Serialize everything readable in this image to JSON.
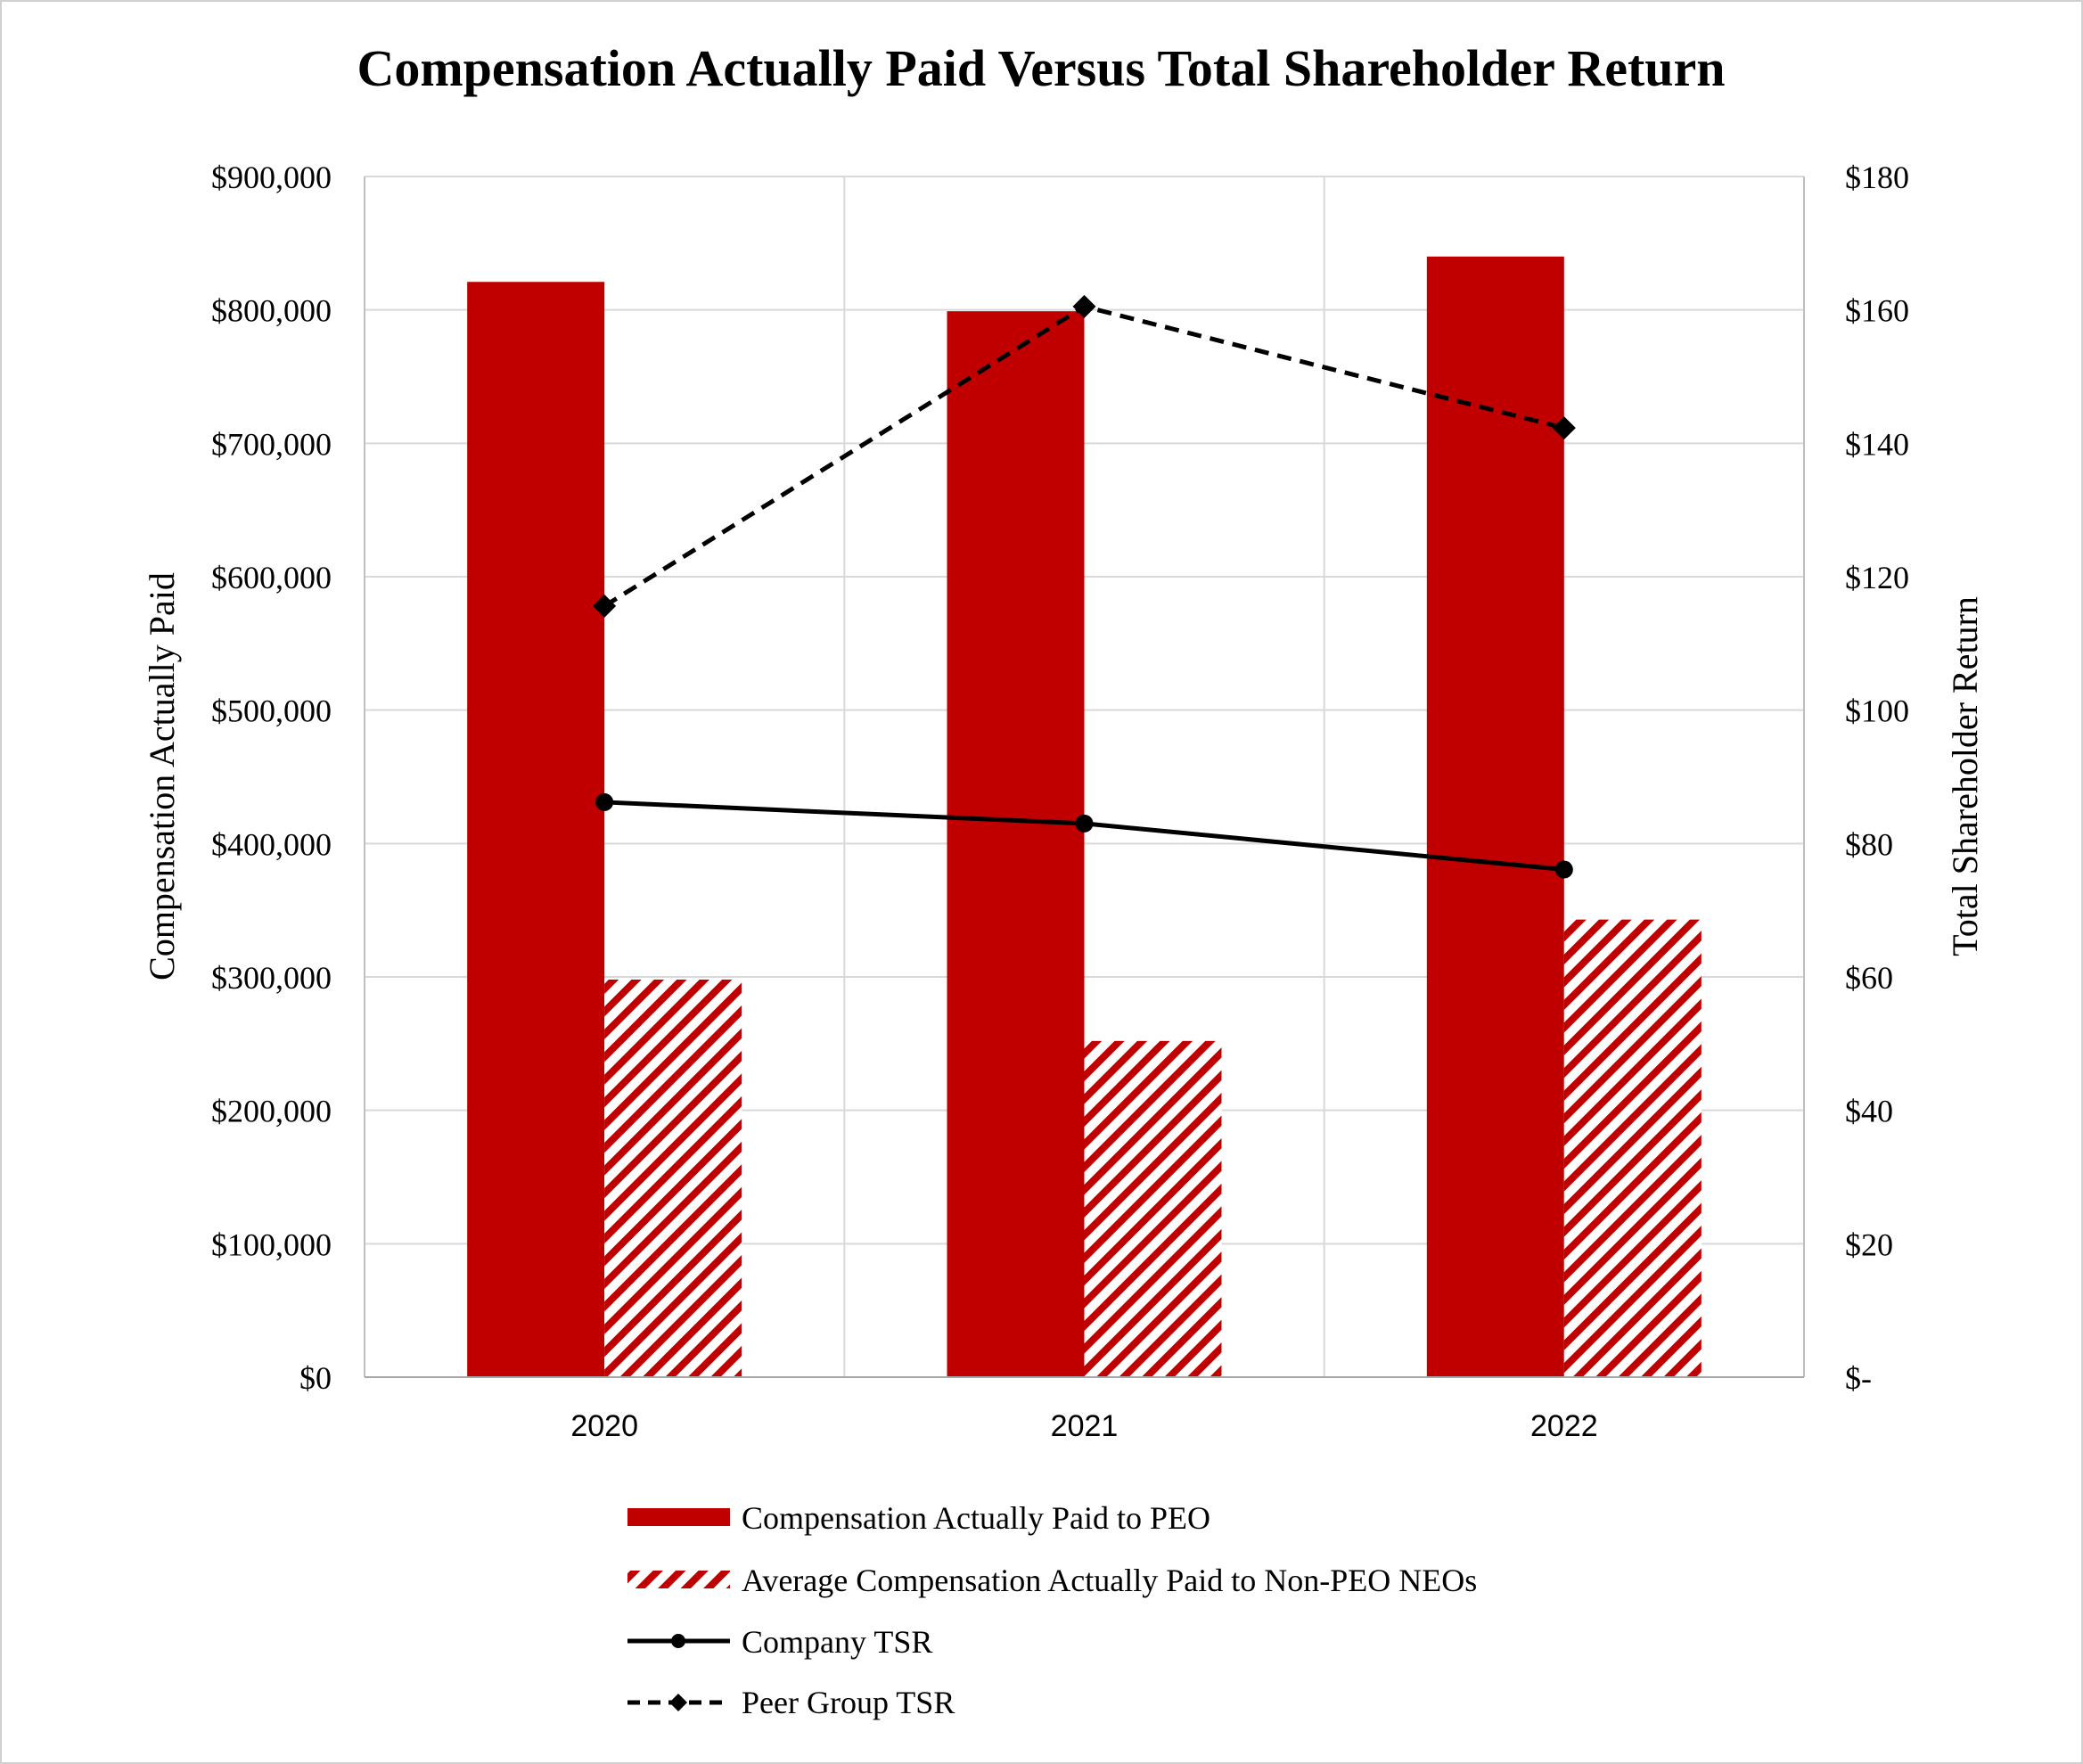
{
  "chart_data": {
    "type": "bar",
    "title": "Compensation Actually Paid Versus Total Shareholder Return",
    "categories": [
      "2020",
      "2021",
      "2022"
    ],
    "ylabel": "Compensation Actually Paid",
    "ylabel_right": "Total Shareholder Return",
    "ylim": [
      0,
      900000
    ],
    "ylim_right": [
      0,
      180
    ],
    "y_ticks": [
      "$0",
      "$100,000",
      "$200,000",
      "$300,000",
      "$400,000",
      "$500,000",
      "$600,000",
      "$700,000",
      "$800,000",
      "$900,000"
    ],
    "y_right_ticks": [
      "$-",
      "$20",
      "$40",
      "$60",
      "$80",
      "$100",
      "$120",
      "$140",
      "$160",
      "$180"
    ],
    "grid": true,
    "legend_position": "bottom",
    "series": [
      {
        "name": "Compensation Actually Paid to PEO",
        "kind": "bar",
        "axis": "left",
        "style": "solid",
        "color": "#c00000",
        "values": [
          821000,
          799000,
          840000
        ]
      },
      {
        "name": "Average Compensation Actually Paid to Non-PEO NEOs",
        "kind": "bar",
        "axis": "left",
        "style": "hatched",
        "color": "#c00000",
        "values": [
          298000,
          252000,
          343000
        ]
      },
      {
        "name": "Company TSR",
        "kind": "line",
        "axis": "right",
        "style": "solid",
        "marker": "circle",
        "color": "#000000",
        "values": [
          86.2,
          83.0,
          76.1
        ]
      },
      {
        "name": "Peer Group TSR",
        "kind": "line",
        "axis": "right",
        "style": "dashed",
        "marker": "diamond",
        "color": "#000000",
        "values": [
          115.6,
          160.5,
          142.3
        ]
      }
    ]
  }
}
